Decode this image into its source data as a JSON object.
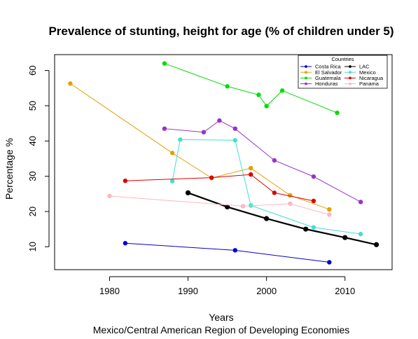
{
  "chart_data": {
    "type": "line",
    "title": "Prevalence of stunting, height for age (% of children under 5)",
    "xlabel": "Years",
    "subtitle": "Mexico/Central American Region of Developing Economies",
    "ylabel": "Percentage %",
    "xlim": [
      1973,
      2016
    ],
    "ylim": [
      3.5,
      64.5
    ],
    "x_ticks": [
      1980,
      1990,
      2000,
      2010
    ],
    "y_ticks": [
      10,
      20,
      30,
      40,
      50,
      60
    ],
    "grid": false,
    "legend": {
      "title": "Countries",
      "placement": "top-right",
      "columns": 2
    },
    "series": [
      {
        "name": "Costa Rica",
        "color": "#0000cd",
        "points": [
          [
            1982,
            11.0
          ],
          [
            1996,
            9.0
          ],
          [
            2008,
            5.6
          ]
        ]
      },
      {
        "name": "El Salvador",
        "color": "#e69f00",
        "points": [
          [
            1975,
            56.3
          ],
          [
            1988,
            36.6
          ],
          [
            1993,
            29.5
          ],
          [
            1998,
            32.3
          ],
          [
            2003,
            24.6
          ],
          [
            2008,
            20.6
          ]
        ]
      },
      {
        "name": "Guatemala",
        "color": "#00dd00",
        "points": [
          [
            1987,
            62.0
          ],
          [
            1995,
            55.5
          ],
          [
            1999,
            53.1
          ],
          [
            2000,
            49.9
          ],
          [
            2002,
            54.3
          ],
          [
            2009,
            48.0
          ]
        ]
      },
      {
        "name": "Honduras",
        "color": "#9932cc",
        "points": [
          [
            1987,
            43.5
          ],
          [
            1992,
            42.5
          ],
          [
            1994,
            45.8
          ],
          [
            1996,
            43.5
          ],
          [
            2001,
            34.5
          ],
          [
            2006,
            29.9
          ],
          [
            2012,
            22.7
          ]
        ]
      },
      {
        "name": "LAC",
        "color": "#000000",
        "points": [
          [
            1990,
            25.3
          ],
          [
            1995,
            21.3
          ],
          [
            2000,
            18.0
          ],
          [
            2005,
            15.0
          ],
          [
            2010,
            12.6
          ],
          [
            2014,
            10.6
          ]
        ]
      },
      {
        "name": "Mexico",
        "color": "#40e0d0",
        "points": [
          [
            1988,
            28.6
          ],
          [
            1989,
            40.4
          ],
          [
            1996,
            40.2
          ],
          [
            1998,
            21.7
          ],
          [
            2006,
            15.5
          ],
          [
            2012,
            13.6
          ]
        ]
      },
      {
        "name": "Nicaragua",
        "color": "#dd0000",
        "points": [
          [
            1982,
            28.7
          ],
          [
            1993,
            29.6
          ],
          [
            1998,
            30.5
          ],
          [
            2001,
            25.3
          ],
          [
            2006,
            23.0
          ]
        ]
      },
      {
        "name": "Panama",
        "color": "#ffb6c1",
        "points": [
          [
            1980,
            24.4
          ],
          [
            1997,
            21.5
          ],
          [
            2003,
            22.2
          ],
          [
            2008,
            19.1
          ]
        ]
      }
    ]
  }
}
